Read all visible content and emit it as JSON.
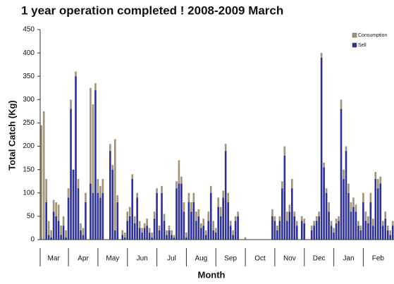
{
  "chart_data": {
    "type": "stacked_bar",
    "title": "1 year operation completed !   2008-2009 March",
    "y_label": "Total Catch (Kg)",
    "x_label": "Month",
    "ylim": [
      0,
      450
    ],
    "yticks": [
      0,
      50,
      100,
      150,
      200,
      250,
      300,
      350,
      400,
      450
    ],
    "legend": "top-right",
    "categories": [
      null,
      null,
      null,
      null,
      null,
      "Mar",
      null,
      null,
      null,
      null,
      null,
      null,
      null,
      null,
      null,
      null,
      null,
      "Apr",
      null,
      null,
      null,
      null,
      null,
      null,
      null,
      null,
      null,
      null,
      null,
      "May",
      null,
      null,
      null,
      null,
      null,
      null,
      null,
      null,
      null,
      null,
      null,
      "Jun",
      null,
      null,
      null,
      null,
      null,
      null,
      null,
      null,
      null,
      null,
      null,
      "Jul",
      null,
      null,
      null,
      null,
      null,
      null,
      null,
      null,
      null,
      null,
      null,
      "Aug",
      null,
      null,
      null,
      null,
      null,
      null,
      null,
      null,
      null,
      null,
      null,
      "Sep",
      null,
      null,
      null,
      null,
      null,
      null,
      null,
      null,
      null,
      null,
      null,
      "Oct",
      null,
      null,
      null,
      null,
      null,
      null,
      null,
      null,
      null,
      null,
      null,
      "Nov",
      null,
      null,
      null,
      null,
      null,
      null,
      null,
      null,
      null,
      null,
      null,
      "Dec",
      null,
      null,
      null,
      null,
      null,
      null,
      null,
      null,
      null,
      null,
      null,
      "Jan",
      null,
      null,
      null,
      null,
      null,
      null,
      null,
      null,
      null,
      null,
      null,
      "Feb",
      null,
      null,
      null,
      null,
      null,
      null
    ],
    "series": [
      {
        "name": "Consumption",
        "color": "#a0937a",
        "values": [
          245,
          275,
          50,
          30,
          15,
          25,
          30,
          35,
          20,
          20,
          15,
          20,
          20,
          0,
          10,
          20,
          15,
          15,
          20,
          0,
          205,
          190,
          15,
          30,
          25,
          30,
          0,
          0,
          15,
          10,
          195,
          15,
          0,
          10,
          10,
          20,
          20,
          10,
          15,
          10,
          15,
          10,
          10,
          15,
          10,
          10,
          15,
          10,
          10,
          15,
          15,
          10,
          10,
          10,
          5,
          15,
          50,
          15,
          20,
          10,
          20,
          20,
          20,
          20,
          15,
          10,
          15,
          10,
          20,
          15,
          20,
          10,
          20,
          20,
          15,
          15,
          20,
          10,
          10,
          10,
          10,
          0,
          0,
          5,
          0,
          0,
          0,
          0,
          0,
          0,
          0,
          0,
          0,
          0,
          15,
          10,
          10,
          10,
          15,
          20,
          20,
          15,
          20,
          10,
          10,
          0,
          10,
          10,
          0,
          0,
          10,
          10,
          10,
          10,
          10,
          10,
          10,
          20,
          10,
          10,
          10,
          10,
          20,
          20,
          10,
          20,
          20,
          20,
          15,
          10,
          10,
          20,
          20,
          15,
          20,
          15,
          15,
          20,
          15,
          10,
          15,
          10,
          10,
          10
        ]
      },
      {
        "name": "Sell",
        "color": "#2e3192",
        "values": [
          0,
          0,
          80,
          10,
          5,
          60,
          50,
          40,
          10,
          30,
          5,
          90,
          280,
          150,
          350,
          110,
          20,
          10,
          80,
          0,
          120,
          100,
          320,
          100,
          90,
          100,
          0,
          0,
          190,
          150,
          20,
          80,
          0,
          10,
          5,
          40,
          50,
          130,
          35,
          90,
          25,
          15,
          25,
          30,
          15,
          5,
          45,
          100,
          20,
          100,
          40,
          10,
          20,
          10,
          5,
          110,
          120,
          120,
          60,
          5,
          80,
          60,
          80,
          40,
          50,
          25,
          30,
          10,
          40,
          100,
          20,
          15,
          70,
          50,
          90,
          190,
          80,
          30,
          10,
          40,
          50,
          0,
          0,
          0,
          0,
          0,
          0,
          0,
          0,
          0,
          0,
          0,
          0,
          0,
          50,
          40,
          20,
          40,
          110,
          180,
          40,
          60,
          110,
          50,
          30,
          0,
          40,
          35,
          0,
          0,
          20,
          30,
          40,
          50,
          390,
          155,
          100,
          60,
          30,
          15,
          35,
          40,
          280,
          130,
          190,
          100,
          60,
          70,
          60,
          30,
          20,
          80,
          40,
          35,
          80,
          30,
          130,
          110,
          120,
          30,
          45,
          20,
          10,
          30
        ]
      }
    ]
  }
}
